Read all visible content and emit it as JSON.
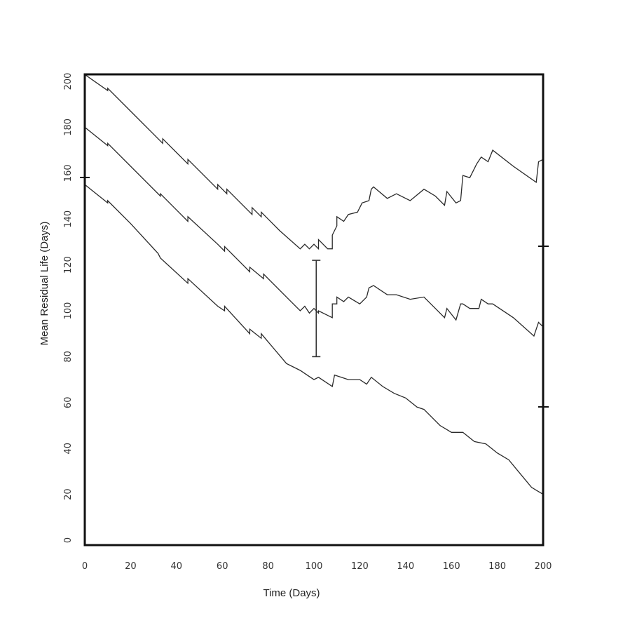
{
  "chart_data": {
    "type": "line",
    "xlabel": "Time (Days)",
    "ylabel": "Mean Residual Life (Days)",
    "xlim": [
      0,
      200
    ],
    "ylim": [
      0,
      205
    ],
    "x_ticks": [
      0,
      20,
      40,
      60,
      80,
      100,
      120,
      140,
      160,
      180,
      200
    ],
    "y_ticks": [
      0,
      20,
      40,
      60,
      80,
      100,
      120,
      140,
      160,
      180,
      200
    ],
    "grid": false,
    "legend": "none",
    "line_color": "#2a2a2a",
    "series": [
      {
        "points": [
          [
            0,
            203
          ],
          [
            10,
            196
          ],
          [
            10,
            197
          ],
          [
            20,
            187
          ],
          [
            30,
            177
          ],
          [
            34,
            173
          ],
          [
            34,
            175
          ],
          [
            45,
            164
          ],
          [
            45,
            166
          ],
          [
            55,
            156
          ],
          [
            58,
            153
          ],
          [
            58,
            155
          ],
          [
            62,
            151
          ],
          [
            62,
            153
          ],
          [
            73,
            142
          ],
          [
            73,
            145
          ],
          [
            77,
            141
          ],
          [
            77,
            143
          ],
          [
            85,
            135
          ],
          [
            94,
            127
          ],
          [
            96,
            129
          ],
          [
            98,
            127
          ],
          [
            100,
            129
          ],
          [
            102,
            127
          ],
          [
            102,
            131
          ],
          [
            106,
            127
          ],
          [
            108,
            127
          ],
          [
            108,
            133
          ],
          [
            110,
            137
          ],
          [
            110,
            141
          ],
          [
            113,
            139
          ],
          [
            115,
            142
          ],
          [
            119,
            143
          ],
          [
            121,
            147
          ],
          [
            124,
            148
          ],
          [
            125,
            153
          ],
          [
            126,
            154
          ],
          [
            132,
            149
          ],
          [
            136,
            151
          ],
          [
            142,
            148
          ],
          [
            148,
            153
          ],
          [
            153,
            150
          ],
          [
            157,
            146
          ],
          [
            158,
            152
          ],
          [
            162,
            147
          ],
          [
            164,
            148
          ],
          [
            165,
            159
          ],
          [
            168,
            158
          ],
          [
            171,
            164
          ],
          [
            173,
            167
          ],
          [
            176,
            165
          ],
          [
            178,
            170
          ],
          [
            187,
            163
          ],
          [
            197,
            156
          ],
          [
            198,
            165
          ],
          [
            200,
            166
          ]
        ]
      },
      {
        "points": [
          [
            0,
            180
          ],
          [
            10,
            172
          ],
          [
            10,
            173
          ],
          [
            20,
            163
          ],
          [
            33,
            150
          ],
          [
            33,
            151
          ],
          [
            45,
            139
          ],
          [
            45,
            141
          ],
          [
            58,
            129
          ],
          [
            61,
            126
          ],
          [
            61,
            128
          ],
          [
            72,
            117
          ],
          [
            72,
            119
          ],
          [
            78,
            114
          ],
          [
            78,
            116
          ],
          [
            90,
            104
          ],
          [
            94,
            100
          ],
          [
            96,
            102
          ],
          [
            98,
            99
          ],
          [
            100,
            101
          ],
          [
            102,
            99
          ],
          [
            102,
            100
          ],
          [
            108,
            97
          ],
          [
            108,
            103
          ],
          [
            110,
            103
          ],
          [
            110,
            106
          ],
          [
            113,
            104
          ],
          [
            115,
            106
          ],
          [
            120,
            103
          ],
          [
            123,
            106
          ],
          [
            124,
            110
          ],
          [
            126,
            111
          ],
          [
            132,
            107
          ],
          [
            136,
            107
          ],
          [
            142,
            105
          ],
          [
            148,
            106
          ],
          [
            153,
            101
          ],
          [
            157,
            97
          ],
          [
            158,
            101
          ],
          [
            162,
            96
          ],
          [
            164,
            103
          ],
          [
            165,
            103
          ],
          [
            168,
            101
          ],
          [
            172,
            101
          ],
          [
            173,
            105
          ],
          [
            176,
            103
          ],
          [
            178,
            103
          ],
          [
            187,
            97
          ],
          [
            196,
            89
          ],
          [
            198,
            95
          ],
          [
            200,
            93
          ]
        ]
      },
      {
        "points": [
          [
            0,
            155
          ],
          [
            10,
            147
          ],
          [
            10,
            148
          ],
          [
            20,
            138
          ],
          [
            32,
            125
          ],
          [
            33,
            123
          ],
          [
            45,
            112
          ],
          [
            45,
            114
          ],
          [
            58,
            102
          ],
          [
            61,
            100
          ],
          [
            61,
            102
          ],
          [
            72,
            90
          ],
          [
            72,
            92
          ],
          [
            77,
            88
          ],
          [
            77,
            90
          ],
          [
            88,
            77
          ],
          [
            94,
            74
          ],
          [
            97,
            72
          ],
          [
            100,
            70
          ],
          [
            102,
            71
          ],
          [
            108,
            67
          ],
          [
            109,
            72
          ],
          [
            115,
            70
          ],
          [
            120,
            70
          ],
          [
            123,
            68
          ],
          [
            125,
            71
          ],
          [
            130,
            67
          ],
          [
            135,
            64
          ],
          [
            140,
            62
          ],
          [
            145,
            58
          ],
          [
            148,
            57
          ],
          [
            155,
            50
          ],
          [
            160,
            47
          ],
          [
            165,
            47
          ],
          [
            170,
            43
          ],
          [
            175,
            42
          ],
          [
            180,
            38
          ],
          [
            185,
            35
          ],
          [
            190,
            29
          ],
          [
            195,
            23
          ],
          [
            200,
            20
          ]
        ]
      }
    ],
    "error_bar": {
      "x": 101,
      "low": 80,
      "high": 122
    }
  }
}
